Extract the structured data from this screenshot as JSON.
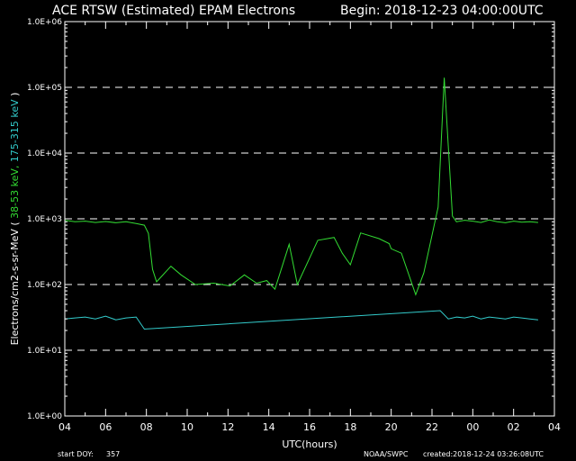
{
  "chart_data": {
    "type": "line",
    "title": "ACE RTSW (Estimated) EPAM Electrons",
    "begin": "Begin: 2018-12-23 04:00:00UTC",
    "xlabel": "UTC(hours)",
    "ylabel_prefix": "Electrons/cm2-s-sr-MeV ",
    "ylabel_paren_open": "( ",
    "ylabel_s1": "38-53 keV,",
    "ylabel_s2": "175-315 keV",
    "ylabel_paren_close": " )",
    "yscale": "log",
    "ylim": [
      1,
      1000000
    ],
    "xlim": [
      0,
      24
    ],
    "x_tick_labels": [
      "04",
      "06",
      "08",
      "10",
      "12",
      "14",
      "16",
      "18",
      "20",
      "22",
      "00",
      "02",
      "04"
    ],
    "y_tick_labels": [
      "1.0E+00",
      "1.0E+01",
      "1.0E+02",
      "1.0E+03",
      "1.0E+04",
      "1.0E+05",
      "1.0E+06"
    ],
    "grid": "dashed horizontal at each decade",
    "colors": {
      "s1": "#33dd33",
      "s2": "#33cccc",
      "grid": "#ffffff"
    },
    "series": [
      {
        "key": "s1",
        "x": [
          0,
          0.5,
          1,
          1.5,
          2,
          2.5,
          3,
          3.5,
          3.9,
          4.1,
          4.3,
          4.5,
          5.2,
          5.7,
          6.4,
          7.3,
          8.1,
          8.8,
          9.4,
          9.9,
          10.3,
          11.0,
          11.4,
          12.4,
          13.2,
          13.6,
          14.0,
          14.5,
          15.4,
          15.9,
          16.0,
          16.5,
          17.2,
          17.6,
          18.3,
          18.6,
          19.0,
          19.2,
          19.6,
          20.0,
          20.4,
          20.8,
          21.2,
          21.6,
          22.0,
          22.4,
          22.8,
          23.2
        ],
        "y": [
          950,
          900,
          920,
          880,
          910,
          870,
          900,
          850,
          800,
          600,
          170,
          110,
          190,
          140,
          100,
          105,
          95,
          140,
          105,
          115,
          85,
          410,
          100,
          470,
          520,
          300,
          200,
          610,
          500,
          420,
          350,
          300,
          70,
          150,
          1500,
          140000,
          1100,
          900,
          950,
          920,
          880,
          960,
          900,
          870,
          920,
          890,
          900,
          880
        ]
      },
      {
        "key": "s2",
        "x": [
          0,
          0.5,
          1,
          1.5,
          2,
          2.5,
          3,
          3.5,
          3.9,
          18.4,
          18.8,
          19.2,
          19.6,
          20.0,
          20.4,
          20.8,
          21.2,
          21.6,
          22.0,
          22.4,
          22.8,
          23.2
        ],
        "y": [
          30,
          31,
          32,
          30,
          33,
          29,
          31,
          32,
          21,
          40,
          30,
          32,
          31,
          33,
          30,
          32,
          31,
          30,
          32,
          31,
          30,
          29
        ]
      }
    ]
  },
  "footer": {
    "start_doy_label": "start DOY:",
    "start_doy": "357",
    "source": "NOAA/SWPC",
    "created": "created:2018-12-24 03:26:08UTC"
  }
}
